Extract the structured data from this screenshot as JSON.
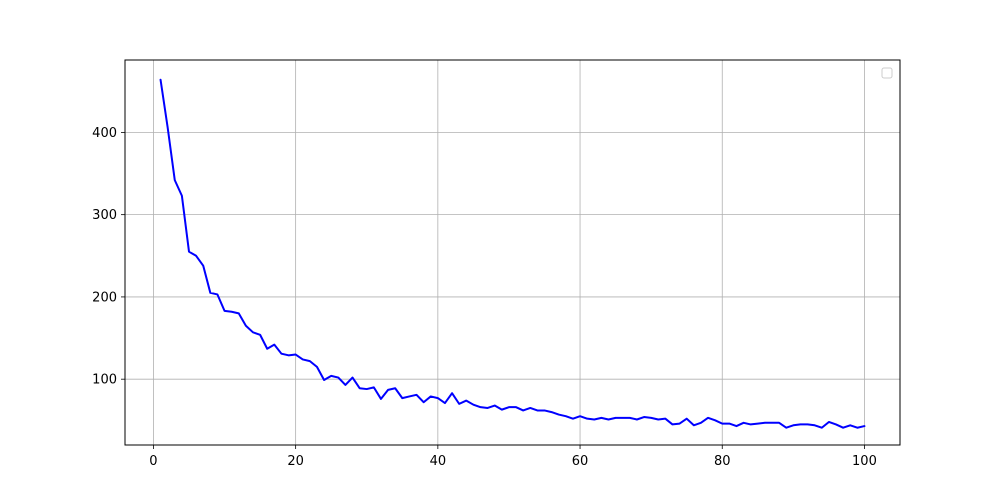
{
  "chart_data": {
    "type": "line",
    "title": "",
    "xlabel": "",
    "ylabel": "",
    "xlim": [
      -4,
      105
    ],
    "ylim": [
      20,
      488
    ],
    "xticks": [
      0,
      20,
      40,
      60,
      80,
      100
    ],
    "yticks": [
      100,
      200,
      300,
      400
    ],
    "grid": true,
    "legend": "top-right, empty",
    "series": [
      {
        "color": "#0000ff",
        "x": [
          1,
          2,
          3,
          4,
          5,
          6,
          7,
          8,
          9,
          10,
          11,
          12,
          13,
          14,
          15,
          16,
          17,
          18,
          19,
          20,
          21,
          22,
          23,
          24,
          25,
          26,
          27,
          28,
          29,
          30,
          31,
          32,
          33,
          34,
          35,
          36,
          37,
          38,
          39,
          40,
          41,
          42,
          43,
          44,
          45,
          46,
          47,
          48,
          49,
          50,
          51,
          52,
          53,
          54,
          55,
          56,
          57,
          58,
          59,
          60,
          61,
          62,
          63,
          64,
          65,
          66,
          67,
          68,
          69,
          70,
          71,
          72,
          73,
          74,
          75,
          76,
          77,
          78,
          79,
          80,
          81,
          82,
          83,
          84,
          85,
          86,
          87,
          88,
          89,
          90,
          91,
          92,
          93,
          94,
          95,
          96,
          97,
          98,
          99,
          100
        ],
        "y": [
          464,
          406,
          342,
          323,
          255,
          250,
          238,
          205,
          203,
          183,
          182,
          180,
          165,
          157,
          154,
          137,
          142,
          131,
          129,
          130,
          124,
          122,
          115,
          99,
          104,
          102,
          93,
          102,
          89,
          88,
          90,
          76,
          87,
          89,
          77,
          79,
          81,
          72,
          79,
          77,
          71,
          83,
          70,
          74,
          69,
          66,
          65,
          68,
          63,
          66,
          66,
          62,
          65,
          62,
          62,
          60,
          57,
          55,
          52,
          55,
          52,
          51,
          53,
          51,
          53,
          53,
          53,
          51,
          54,
          53,
          51,
          52,
          45,
          46,
          52,
          44,
          47,
          53,
          50,
          46,
          46,
          43,
          47,
          45,
          46,
          47,
          47,
          47,
          41,
          44,
          45,
          45,
          44,
          41,
          48,
          45,
          41,
          44,
          41,
          43
        ]
      }
    ]
  }
}
